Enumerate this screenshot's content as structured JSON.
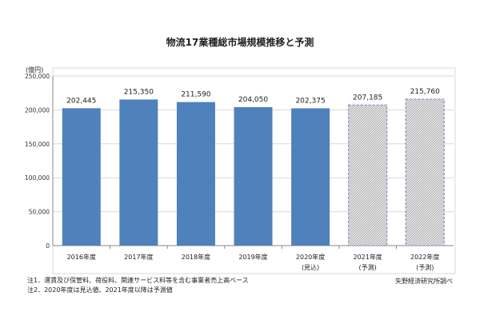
{
  "chart_data": {
    "type": "bar",
    "title": "物流17業種総市場規模推移と予測",
    "ylabel": "(億円)",
    "xlabel": "",
    "ylim": [
      0,
      250000
    ],
    "yticks": [
      "0",
      "50,000",
      "100,000",
      "150,000",
      "200,000",
      "250,000"
    ],
    "grid": true,
    "categories": [
      [
        "2016年度",
        ""
      ],
      [
        "2017年度",
        ""
      ],
      [
        "2018年度",
        ""
      ],
      [
        "2019年度",
        ""
      ],
      [
        "2020年度",
        "(見込)"
      ],
      [
        "2021年度",
        "(予測)"
      ],
      [
        "2022年度",
        "(予測)"
      ]
    ],
    "values": [
      202445,
      215350,
      211590,
      204050,
      202375,
      207185,
      215760
    ],
    "labels": [
      "202,445",
      "215,350",
      "211,590",
      "204,050",
      "202,375",
      "207,185",
      "215,760"
    ],
    "forecast": [
      false,
      false,
      false,
      false,
      false,
      true,
      true
    ],
    "colors": {
      "actual": "#4f81bd",
      "forecast_border": "#6f7fc0",
      "forecast_fill": "#d9d9d9"
    }
  },
  "notes": [
    "注1．運賃及び保管料、荷役料、関連サービス料等を含む事業者売上高ベース",
    "注2．2020年度は見込値、2021年度以降は予測値"
  ],
  "source": "矢野経済研究所調べ"
}
